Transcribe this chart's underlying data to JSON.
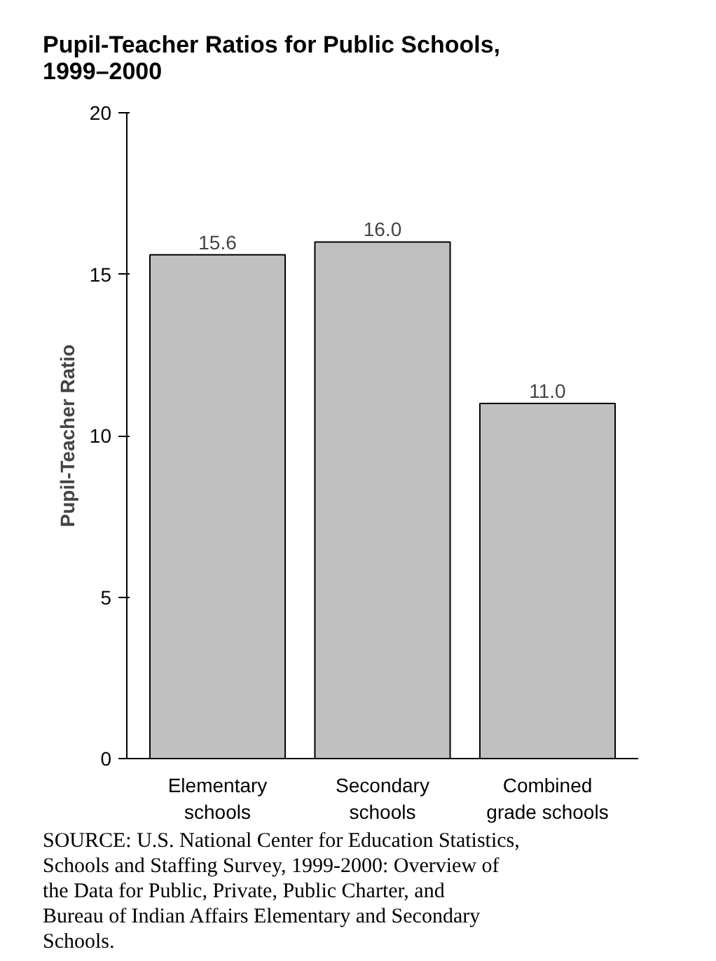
{
  "chart_data": {
    "type": "bar",
    "title": "Pupil-Teacher Ratios for Public Schools, 1999–2000",
    "ylabel": "Pupil-Teacher Ratio",
    "categories": [
      "Elementary schools",
      "Secondary schools",
      "Combined grade schools"
    ],
    "values": [
      15.6,
      16.0,
      11.0
    ],
    "value_labels": [
      "15.6",
      "16.0",
      "11.0"
    ],
    "color": "#c0c0c0",
    "ylim": [
      0,
      20
    ],
    "yticks": [
      0,
      5,
      10,
      15,
      20
    ],
    "grid": false,
    "annotations": [
      "SOURCE: U.S. National Center for Education Statistics, Schools and Staffing Survey, 1999-2000: Overview of the Data for Public, Private, Public Charter, and Bureau of Indian Affairs Elementary and Secondary Schools."
    ]
  }
}
